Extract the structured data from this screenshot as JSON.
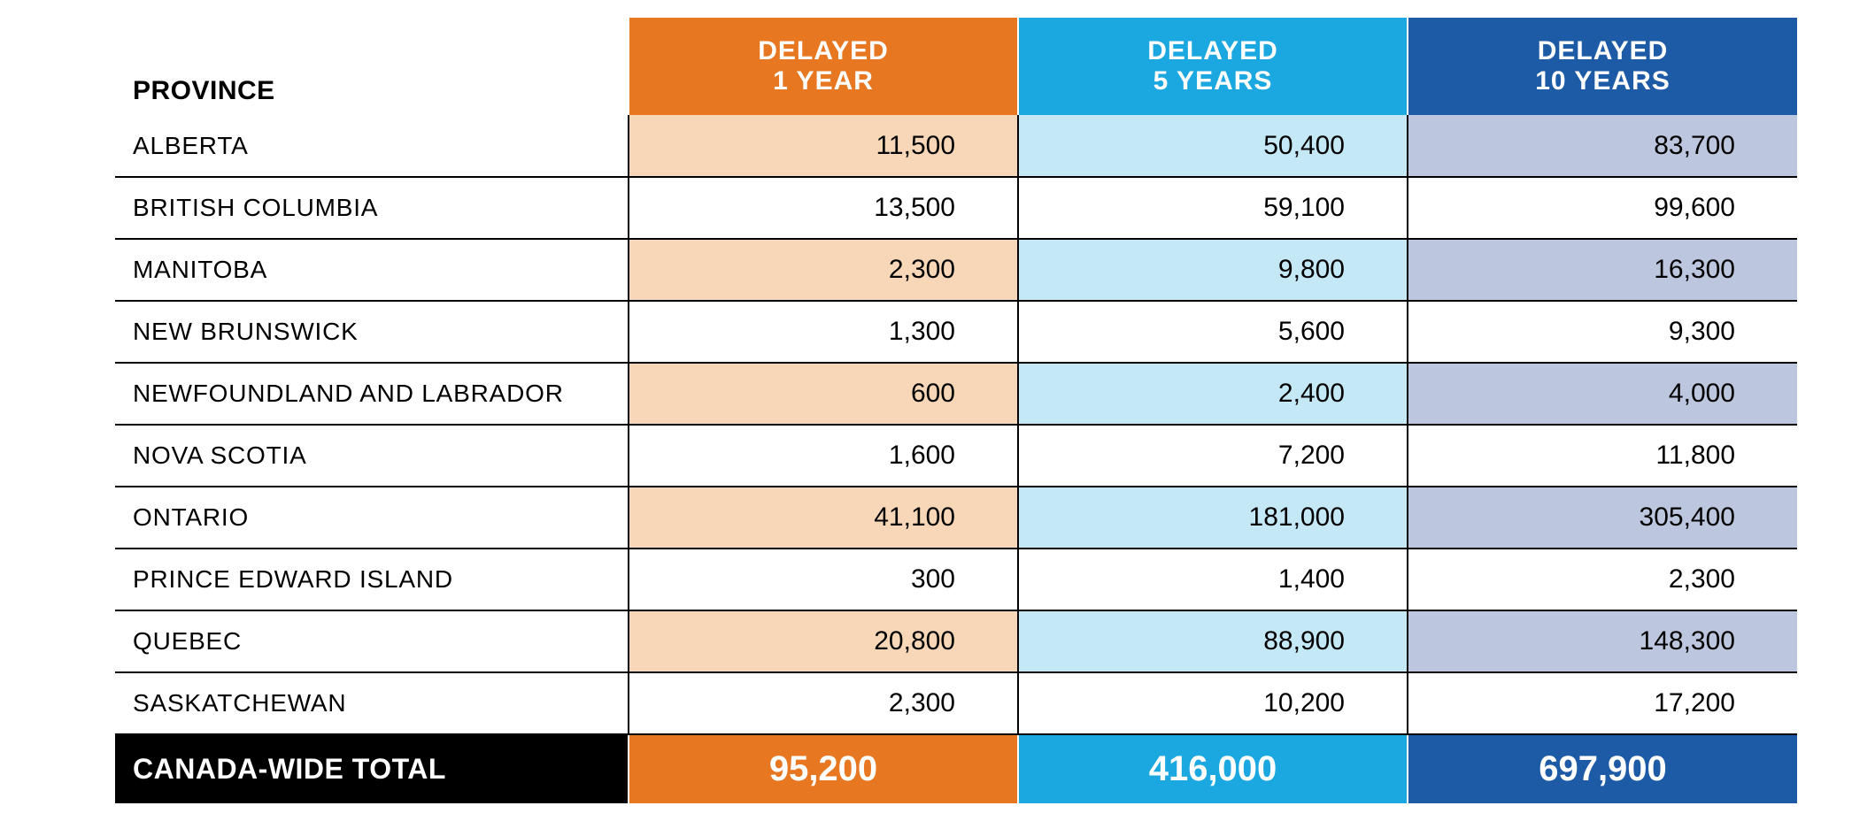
{
  "table": {
    "header": {
      "province_label": "PROVINCE",
      "columns": [
        {
          "line1": "DELAYED",
          "line2": "1 YEAR",
          "bg": "#e87722",
          "tint": "#f8d7b8"
        },
        {
          "line1": "DELAYED",
          "line2": "5 YEARS",
          "bg": "#1ba7e0",
          "tint": "#c5e8f7"
        },
        {
          "line1": "DELAYED",
          "line2": "10 YEARS",
          "bg": "#1e5ba6",
          "tint": "#bcc6de"
        }
      ]
    },
    "rows": [
      {
        "province": "ALBERTA",
        "values": [
          "11,500",
          "50,400",
          "83,700"
        ],
        "shaded": true
      },
      {
        "province": "BRITISH COLUMBIA",
        "values": [
          "13,500",
          "59,100",
          "99,600"
        ],
        "shaded": false
      },
      {
        "province": "MANITOBA",
        "values": [
          "2,300",
          "9,800",
          "16,300"
        ],
        "shaded": true
      },
      {
        "province": "NEW BRUNSWICK",
        "values": [
          "1,300",
          "5,600",
          "9,300"
        ],
        "shaded": false
      },
      {
        "province": "NEWFOUNDLAND AND LABRADOR",
        "values": [
          "600",
          "2,400",
          "4,000"
        ],
        "shaded": true
      },
      {
        "province": "NOVA SCOTIA",
        "values": [
          "1,600",
          "7,200",
          "11,800"
        ],
        "shaded": false
      },
      {
        "province": "ONTARIO",
        "values": [
          "41,100",
          "181,000",
          "305,400"
        ],
        "shaded": true
      },
      {
        "province": "PRINCE EDWARD ISLAND",
        "values": [
          "300",
          "1,400",
          "2,300"
        ],
        "shaded": false
      },
      {
        "province": "QUEBEC",
        "values": [
          "20,800",
          "88,900",
          "148,300"
        ],
        "shaded": true
      },
      {
        "province": "SASKATCHEWAN",
        "values": [
          "2,300",
          "10,200",
          "17,200"
        ],
        "shaded": false
      }
    ],
    "total": {
      "label": "CANADA-WIDE TOTAL",
      "label_bg": "#000000",
      "values": [
        "95,200",
        "416,000",
        "697,900"
      ]
    },
    "plain_bg": "#ffffff",
    "text_color": "#000000"
  }
}
